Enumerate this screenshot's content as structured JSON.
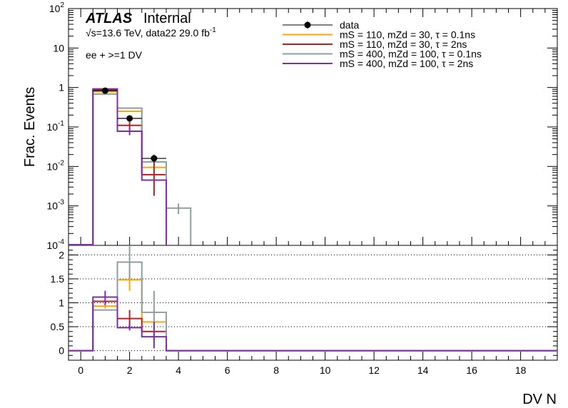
{
  "header": {
    "atlas": "ATLAS",
    "atlas_suffix": "Internal",
    "energy_prefix": "√s=13.6 TeV, data22 29.0 fb",
    "energy_sup": "-1",
    "selection": "ee + >=1 DV"
  },
  "legend": [
    {
      "key": "data",
      "label": "data",
      "color": "#000000",
      "style": "marker"
    },
    {
      "key": "s1",
      "label": "mS = 110, mZd = 30, τ = 0.1ns",
      "color": "#ffa500",
      "style": "line"
    },
    {
      "key": "s2",
      "label": "mS = 110, mZd = 30, τ = 2ns",
      "color": "#b22222",
      "style": "line"
    },
    {
      "key": "s3",
      "label": "mS = 400, mZd = 100, τ = 0.1ns",
      "color": "#8e9fa2",
      "style": "line"
    },
    {
      "key": "s4",
      "label": "mS = 400, mZd = 100, τ = 2ns",
      "color": "#7b2fa8",
      "style": "line"
    }
  ],
  "chart_data": [
    {
      "type": "histogram",
      "panel": "main",
      "ylabel": "Frac. Events",
      "ylog": true,
      "ylim": [
        0.0001,
        100
      ],
      "xlim": [
        -0.5,
        19.5
      ],
      "y_ticks": [
        {
          "v": 100,
          "label": "10",
          "sup": "2"
        },
        {
          "v": 10,
          "label": "10",
          "sup": ""
        },
        {
          "v": 1,
          "label": "1",
          "sup": ""
        },
        {
          "v": 0.1,
          "label": "10",
          "sup": "-1"
        },
        {
          "v": 0.01,
          "label": "10",
          "sup": "-2"
        },
        {
          "v": 0.001,
          "label": "10",
          "sup": "-3"
        },
        {
          "v": 0.0001,
          "label": "10",
          "sup": "-4"
        }
      ],
      "data_points": [
        {
          "x": 1,
          "y": 0.83,
          "err": 0.02
        },
        {
          "x": 2,
          "y": 0.165,
          "err": 0.018
        },
        {
          "x": 3,
          "y": 0.016,
          "err": 0.004
        }
      ],
      "series": [
        {
          "key": "s1",
          "bins": [
            {
              "x": 1,
              "y": 0.78
            },
            {
              "x": 2,
              "y": 0.25
            },
            {
              "x": 3,
              "y": 0.0095
            }
          ],
          "errors": []
        },
        {
          "key": "s2",
          "bins": [
            {
              "x": 1,
              "y": 0.86
            },
            {
              "x": 2,
              "y": 0.11
            },
            {
              "x": 3,
              "y": 0.0062
            }
          ],
          "errors": [
            {
              "x": 2,
              "lo": 0.085,
              "hi": 0.14
            },
            {
              "x": 3,
              "lo": 0.0018,
              "hi": 0.012
            }
          ]
        },
        {
          "key": "s3",
          "bins": [
            {
              "x": 1,
              "y": 0.68
            },
            {
              "x": 2,
              "y": 0.3
            },
            {
              "x": 3,
              "y": 0.013
            },
            {
              "x": 4,
              "y": 0.00088
            }
          ],
          "errors": [
            {
              "x": 4,
              "lo": 0.00062,
              "hi": 0.00115
            }
          ]
        },
        {
          "key": "s4",
          "bins": [
            {
              "x": 1,
              "y": 0.92
            },
            {
              "x": 2,
              "y": 0.078
            },
            {
              "x": 3,
              "y": 0.0045
            }
          ],
          "errors": [
            {
              "x": 2,
              "lo": 0.062,
              "hi": 0.095
            }
          ]
        }
      ]
    },
    {
      "type": "histogram",
      "panel": "ratio",
      "xlabel": "DV N",
      "ylim": [
        -0.2,
        2.2
      ],
      "xlim": [
        -0.5,
        19.5
      ],
      "x_ticks": [
        0,
        2,
        4,
        6,
        8,
        10,
        12,
        14,
        16,
        18
      ],
      "y_ticks": [
        {
          "v": 0,
          "label": "0"
        },
        {
          "v": 0.5,
          "label": "0.5"
        },
        {
          "v": 1,
          "label": "1"
        },
        {
          "v": 1.5,
          "label": "1.5"
        },
        {
          "v": 2,
          "label": "2"
        }
      ],
      "series": [
        {
          "key": "s1",
          "bins": [
            {
              "x": 1,
              "y": 0.93
            },
            {
              "x": 2,
              "y": 1.48
            },
            {
              "x": 3,
              "y": 0.6
            }
          ],
          "errors": [
            {
              "x": 1,
              "lo": 0.88,
              "hi": 0.98
            },
            {
              "x": 2,
              "lo": 1.25,
              "hi": 1.7
            }
          ]
        },
        {
          "key": "s2",
          "bins": [
            {
              "x": 1,
              "y": 1.03
            },
            {
              "x": 2,
              "y": 0.67
            },
            {
              "x": 3,
              "y": 0.4
            }
          ],
          "errors": [
            {
              "x": 2,
              "lo": 0.5,
              "hi": 0.85
            }
          ]
        },
        {
          "key": "s3",
          "bins": [
            {
              "x": 1,
              "y": 0.85
            },
            {
              "x": 2,
              "y": 1.85
            },
            {
              "x": 3,
              "y": 0.8
            }
          ],
          "errors": [
            {
              "x": 2,
              "lo": 1.5,
              "hi": 2.2
            },
            {
              "x": 3,
              "lo": 0.2,
              "hi": 1.25
            }
          ]
        },
        {
          "key": "s4",
          "bins": [
            {
              "x": 1,
              "y": 1.12
            },
            {
              "x": 2,
              "y": 0.48
            },
            {
              "x": 3,
              "y": 0.29
            }
          ],
          "errors": [
            {
              "x": 1,
              "lo": 0.95,
              "hi": 1.25
            },
            {
              "x": 2,
              "lo": 0.42,
              "hi": 0.58
            },
            {
              "x": 3,
              "lo": 0.05,
              "hi": 0.6
            }
          ]
        }
      ]
    }
  ]
}
